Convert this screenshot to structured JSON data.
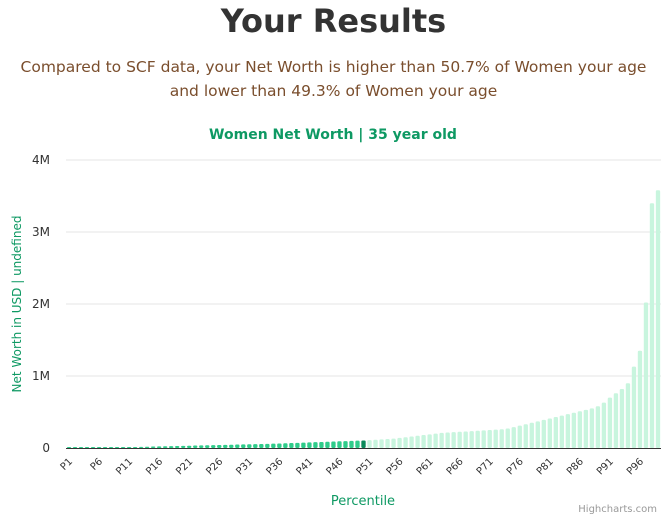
{
  "page": {
    "title": "Your Results",
    "subtitle_line1": "Compared to SCF data, your Net Worth is higher than 50.7% of Women your age",
    "subtitle_line2": "and lower than 49.3% of Women your age",
    "credits": "Highcharts.com"
  },
  "colors": {
    "below": "#2ecc8a",
    "highlight": "#0b8a5a",
    "above": "#c8f5de",
    "chart_title": "#0e9963",
    "subtitle": "#7a4e2d"
  },
  "chart_data": {
    "type": "bar",
    "title": "Women Net Worth | 35 year old",
    "xlabel": "Percentile",
    "ylabel": "Net Worth in USD | undefined",
    "ylim": [
      0,
      4000000
    ],
    "yticks": [
      0,
      1000000,
      2000000,
      3000000,
      4000000
    ],
    "ytick_labels": [
      "0",
      "1M",
      "2M",
      "3M",
      "4M"
    ],
    "xtick_labels": [
      "P1",
      "P6",
      "P11",
      "P16",
      "P21",
      "P26",
      "P31",
      "P36",
      "P41",
      "P46",
      "P51",
      "P56",
      "P61",
      "P66",
      "P71",
      "P76",
      "P81",
      "P86",
      "P91",
      "P96"
    ],
    "categories": [
      "P1",
      "P2",
      "P3",
      "P4",
      "P5",
      "P6",
      "P7",
      "P8",
      "P9",
      "P10",
      "P11",
      "P12",
      "P13",
      "P14",
      "P15",
      "P16",
      "P17",
      "P18",
      "P19",
      "P20",
      "P21",
      "P22",
      "P23",
      "P24",
      "P25",
      "P26",
      "P27",
      "P28",
      "P29",
      "P30",
      "P31",
      "P32",
      "P33",
      "P34",
      "P35",
      "P36",
      "P37",
      "P38",
      "P39",
      "P40",
      "P41",
      "P42",
      "P43",
      "P44",
      "P45",
      "P46",
      "P47",
      "P48",
      "P49",
      "P50",
      "P51",
      "P52",
      "P53",
      "P54",
      "P55",
      "P56",
      "P57",
      "P58",
      "P59",
      "P60",
      "P61",
      "P62",
      "P63",
      "P64",
      "P65",
      "P66",
      "P67",
      "P68",
      "P69",
      "P70",
      "P71",
      "P72",
      "P73",
      "P74",
      "P75",
      "P76",
      "P77",
      "P78",
      "P79",
      "P80",
      "P81",
      "P82",
      "P83",
      "P84",
      "P85",
      "P86",
      "P87",
      "P88",
      "P89",
      "P90",
      "P91",
      "P92",
      "P93",
      "P94",
      "P95",
      "P96",
      "P97",
      "P98",
      "P99"
    ],
    "values": [
      0,
      0,
      0,
      0,
      0,
      2000,
      4000,
      6000,
      8000,
      10000,
      12000,
      14000,
      16000,
      18000,
      20000,
      22000,
      24000,
      26000,
      28000,
      30000,
      32000,
      34000,
      36000,
      38000,
      40000,
      42000,
      44000,
      46000,
      48000,
      50000,
      52000,
      54000,
      56000,
      58000,
      60000,
      63000,
      66000,
      69000,
      72000,
      75000,
      78000,
      81000,
      84000,
      87000,
      90000,
      93000,
      96000,
      99000,
      102000,
      105000,
      110000,
      115000,
      120000,
      125000,
      130000,
      140000,
      150000,
      160000,
      170000,
      180000,
      190000,
      200000,
      210000,
      215000,
      220000,
      225000,
      230000,
      235000,
      240000,
      245000,
      250000,
      255000,
      260000,
      270000,
      290000,
      310000,
      330000,
      350000,
      370000,
      390000,
      410000,
      430000,
      450000,
      470000,
      490000,
      510000,
      530000,
      550000,
      580000,
      630000,
      700000,
      760000,
      820000,
      900000,
      1130000,
      1350000,
      2020000,
      3400000,
      3580000
    ],
    "highlight_index": 49
  }
}
